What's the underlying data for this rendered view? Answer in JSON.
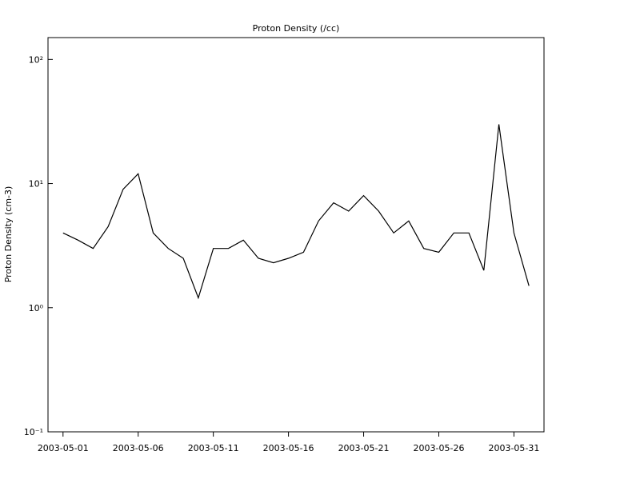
{
  "chart_data": {
    "type": "line",
    "title": "Proton Density (/cc)",
    "ylabel": "Proton Density (cm-3)",
    "yscale": "log",
    "grid": false,
    "xlim": [
      "2003-04-30",
      "2003-06-02"
    ],
    "xticks": [
      "2003-05-01",
      "2003-05-06",
      "2003-05-11",
      "2003-05-16",
      "2003-05-21",
      "2003-05-26",
      "2003-05-31"
    ],
    "ylim": [
      0.1,
      150
    ],
    "yticks": [
      {
        "value": 0.1,
        "label": "10⁻¹"
      },
      {
        "value": 1,
        "label": "10⁰"
      },
      {
        "value": 10,
        "label": "10¹"
      },
      {
        "value": 100,
        "label": "10²"
      }
    ],
    "x": [
      "2003-05-01",
      "2003-05-02",
      "2003-05-03",
      "2003-05-04",
      "2003-05-05",
      "2003-05-06",
      "2003-05-07",
      "2003-05-08",
      "2003-05-09",
      "2003-05-10",
      "2003-05-11",
      "2003-05-12",
      "2003-05-13",
      "2003-05-14",
      "2003-05-15",
      "2003-05-16",
      "2003-05-17",
      "2003-05-18",
      "2003-05-19",
      "2003-05-20",
      "2003-05-21",
      "2003-05-22",
      "2003-05-23",
      "2003-05-24",
      "2003-05-25",
      "2003-05-26",
      "2003-05-27",
      "2003-05-28",
      "2003-05-29",
      "2003-05-30",
      "2003-05-31",
      "2003-06-01"
    ],
    "series": [
      {
        "name": "Proton Density",
        "color": "#000000",
        "values": [
          4,
          3.5,
          3,
          4.5,
          9,
          12,
          4,
          3,
          2.5,
          1.2,
          3,
          3,
          3.5,
          2.5,
          2.3,
          2.5,
          2.8,
          5,
          7,
          6,
          8,
          6,
          4,
          5,
          3,
          2.8,
          4,
          4,
          2,
          30,
          4,
          1.5
        ]
      }
    ]
  }
}
